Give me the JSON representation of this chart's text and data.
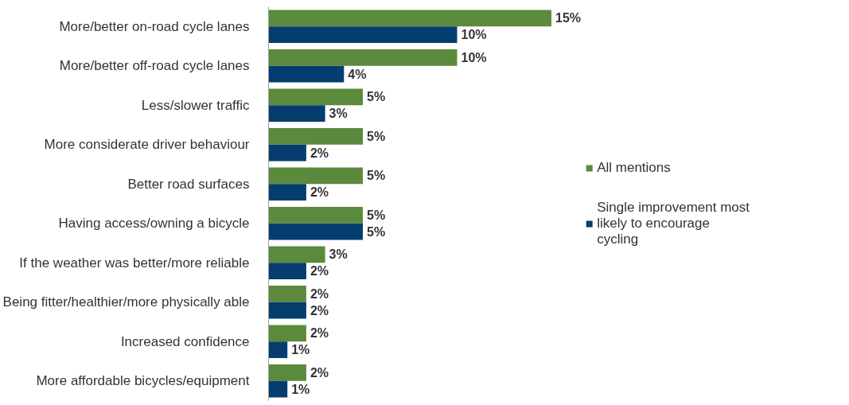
{
  "chart_data": {
    "type": "bar",
    "orientation": "horizontal",
    "categories": [
      "More/better on-road cycle lanes",
      "More/better off-road cycle lanes",
      "Less/slower traffic",
      "More considerate driver behaviour",
      "Better road surfaces",
      "Having access/owning a bicycle",
      "If the weather was better/more reliable",
      "Being fitter/healthier/more physically able",
      "Increased confidence",
      "More affordable bicycles/equipment"
    ],
    "series": [
      {
        "name": "All mentions",
        "color": "#5b8a3c",
        "values": [
          15,
          10,
          5,
          5,
          5,
          5,
          3,
          2,
          2,
          2
        ],
        "value_labels": [
          "15%",
          "10%",
          "5%",
          "5%",
          "5%",
          "5%",
          "3%",
          "2%",
          "2%",
          "2%"
        ]
      },
      {
        "name": "Single improvement most likely to encourage cycling",
        "color": "#063d6f",
        "values": [
          10,
          4,
          3,
          2,
          2,
          5,
          2,
          2,
          1,
          1
        ],
        "value_labels": [
          "10%",
          "4%",
          "3%",
          "2%",
          "2%",
          "5%",
          "2%",
          "2%",
          "1%",
          "1%"
        ]
      }
    ],
    "legend": "right",
    "grid": false
  }
}
